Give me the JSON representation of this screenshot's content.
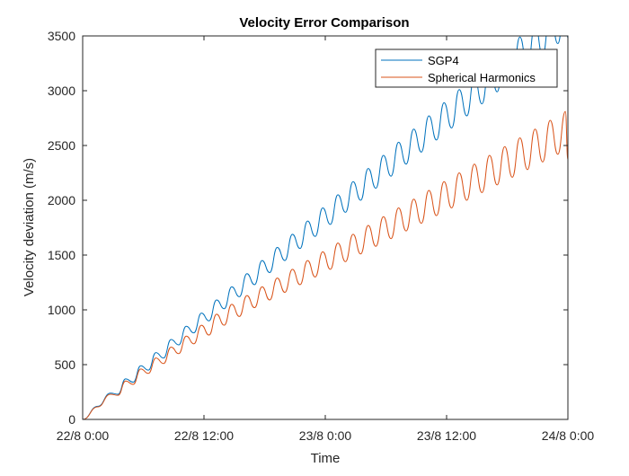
{
  "chart_data": {
    "type": "line",
    "title": "Velocity Error Comparison",
    "xlabel": "Time",
    "ylabel": "Velocity deviation (m/s)",
    "xlim": [
      "2022-08-22T00:00",
      "2022-08-24T00:00"
    ],
    "ylim": [
      0,
      3500
    ],
    "x_ticks": [
      "2022-08-22T00:00",
      "2022-08-22T12:00",
      "2022-08-23T00:00",
      "2022-08-23T12:00",
      "2022-08-24T00:00"
    ],
    "x_tick_labels": [
      "22/8 0:00",
      "22/8 12:00",
      "23/8 0:00",
      "23/8 12:00",
      "24/8 0:00"
    ],
    "y_ticks": [
      0,
      500,
      1000,
      1500,
      2000,
      2500,
      3000,
      3500
    ],
    "grid": false,
    "legend_position": "top-right",
    "series": [
      {
        "name": "SGP4",
        "color": "#0072BD",
        "x": [
          "2022-08-22T00:00",
          "2022-08-22T01:30",
          "2022-08-22T02:45",
          "2022-08-22T03:30",
          "2022-08-22T04:15",
          "2022-08-22T05:00",
          "2022-08-22T05:45",
          "2022-08-22T06:30",
          "2022-08-22T07:15",
          "2022-08-22T08:00",
          "2022-08-22T08:45",
          "2022-08-22T09:30",
          "2022-08-22T10:15",
          "2022-08-22T11:00",
          "2022-08-22T11:45",
          "2022-08-22T12:30",
          "2022-08-22T13:15",
          "2022-08-22T14:00",
          "2022-08-22T14:45",
          "2022-08-22T15:30",
          "2022-08-22T16:15",
          "2022-08-22T17:00",
          "2022-08-22T17:45",
          "2022-08-22T18:30",
          "2022-08-22T19:15",
          "2022-08-22T20:00",
          "2022-08-22T20:45",
          "2022-08-22T21:30",
          "2022-08-22T22:15",
          "2022-08-22T23:00",
          "2022-08-22T23:45",
          "2022-08-23T00:30",
          "2022-08-23T01:15",
          "2022-08-23T02:00",
          "2022-08-23T02:45",
          "2022-08-23T03:30",
          "2022-08-23T04:15",
          "2022-08-23T05:00",
          "2022-08-23T05:45",
          "2022-08-23T06:30",
          "2022-08-23T07:15",
          "2022-08-23T08:00",
          "2022-08-23T08:45",
          "2022-08-23T09:30",
          "2022-08-23T10:15",
          "2022-08-23T11:00",
          "2022-08-23T11:45",
          "2022-08-23T12:30",
          "2022-08-23T13:15",
          "2022-08-23T14:00",
          "2022-08-23T14:45",
          "2022-08-23T15:30",
          "2022-08-23T16:15",
          "2022-08-23T17:00",
          "2022-08-23T17:45",
          "2022-08-23T18:30",
          "2022-08-23T19:15",
          "2022-08-23T20:00",
          "2022-08-23T20:45",
          "2022-08-23T21:30",
          "2022-08-23T22:15",
          "2022-08-23T23:00",
          "2022-08-23T23:45",
          "2022-08-24T00:00"
        ],
        "y": [
          0,
          120,
          240,
          230,
          370,
          340,
          490,
          450,
          610,
          560,
          730,
          680,
          850,
          790,
          970,
          900,
          1090,
          1010,
          1210,
          1120,
          1330,
          1230,
          1450,
          1340,
          1570,
          1450,
          1690,
          1560,
          1810,
          1670,
          1930,
          1780,
          2050,
          1890,
          2170,
          2000,
          2290,
          2110,
          2410,
          2220,
          2530,
          2330,
          2650,
          2440,
          2770,
          2550,
          2890,
          2660,
          3010,
          2770,
          3130,
          2880,
          3250,
          2990,
          3370,
          3100,
          3490,
          3210,
          3610,
          3320,
          3730,
          3430,
          3850,
          3480
        ]
      },
      {
        "name": "Spherical Harmonics",
        "color": "#D95319",
        "x": [
          "2022-08-22T00:00",
          "2022-08-22T01:30",
          "2022-08-22T02:45",
          "2022-08-22T03:30",
          "2022-08-22T04:15",
          "2022-08-22T05:00",
          "2022-08-22T05:45",
          "2022-08-22T06:30",
          "2022-08-22T07:15",
          "2022-08-22T08:00",
          "2022-08-22T08:45",
          "2022-08-22T09:30",
          "2022-08-22T10:15",
          "2022-08-22T11:00",
          "2022-08-22T11:45",
          "2022-08-22T12:30",
          "2022-08-22T13:15",
          "2022-08-22T14:00",
          "2022-08-22T14:45",
          "2022-08-22T15:30",
          "2022-08-22T16:15",
          "2022-08-22T17:00",
          "2022-08-22T17:45",
          "2022-08-22T18:30",
          "2022-08-22T19:15",
          "2022-08-22T20:00",
          "2022-08-22T20:45",
          "2022-08-22T21:30",
          "2022-08-22T22:15",
          "2022-08-22T23:00",
          "2022-08-22T23:45",
          "2022-08-23T00:30",
          "2022-08-23T01:15",
          "2022-08-23T02:00",
          "2022-08-23T02:45",
          "2022-08-23T03:30",
          "2022-08-23T04:15",
          "2022-08-23T05:00",
          "2022-08-23T05:45",
          "2022-08-23T06:30",
          "2022-08-23T07:15",
          "2022-08-23T08:00",
          "2022-08-23T08:45",
          "2022-08-23T09:30",
          "2022-08-23T10:15",
          "2022-08-23T11:00",
          "2022-08-23T11:45",
          "2022-08-23T12:30",
          "2022-08-23T13:15",
          "2022-08-23T14:00",
          "2022-08-23T14:45",
          "2022-08-23T15:30",
          "2022-08-23T16:15",
          "2022-08-23T17:00",
          "2022-08-23T17:45",
          "2022-08-23T18:30",
          "2022-08-23T19:15",
          "2022-08-23T20:00",
          "2022-08-23T20:45",
          "2022-08-23T21:30",
          "2022-08-23T22:15",
          "2022-08-23T23:00",
          "2022-08-23T23:45",
          "2022-08-24T00:00"
        ],
        "y": [
          0,
          115,
          230,
          220,
          350,
          320,
          460,
          420,
          560,
          510,
          660,
          600,
          760,
          690,
          860,
          770,
          960,
          860,
          1050,
          940,
          1130,
          1020,
          1210,
          1090,
          1290,
          1160,
          1370,
          1230,
          1450,
          1300,
          1530,
          1370,
          1610,
          1440,
          1690,
          1510,
          1770,
          1580,
          1850,
          1650,
          1930,
          1720,
          2010,
          1790,
          2090,
          1860,
          2170,
          1930,
          2250,
          2000,
          2330,
          2070,
          2410,
          2140,
          2490,
          2210,
          2570,
          2280,
          2650,
          2350,
          2730,
          2420,
          2810,
          2370
        ]
      }
    ]
  }
}
